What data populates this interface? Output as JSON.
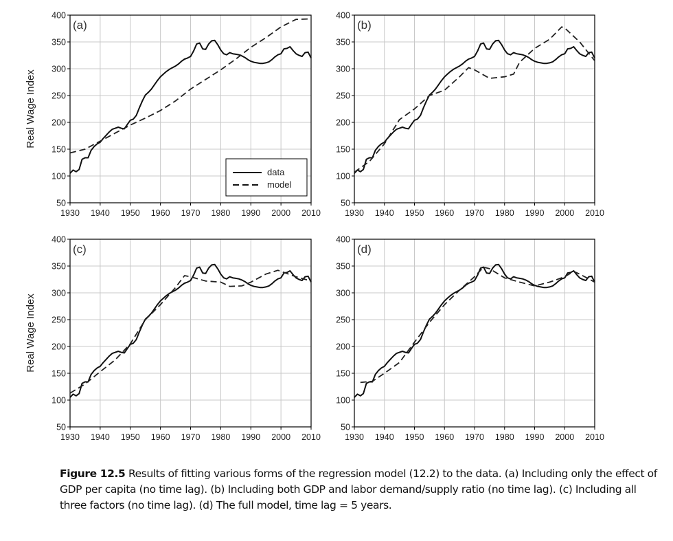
{
  "chart_data": [
    {
      "panel_label": "(a)",
      "type": "line",
      "ylabel": "Real Wage Index",
      "xlim": [
        1930,
        2010
      ],
      "ylim": [
        50,
        400
      ],
      "xticks": [
        "1930",
        "1940",
        "1950",
        "1960",
        "1970",
        "1980",
        "1990",
        "2000",
        "2010"
      ],
      "yticks": [
        "50",
        "100",
        "150",
        "200",
        "250",
        "300",
        "350",
        "400"
      ],
      "grid": true,
      "legend": {
        "placement": "bottom-right",
        "entries": [
          "data",
          "model"
        ]
      },
      "model": {
        "x": [
          1930,
          1935,
          1940,
          1945,
          1950,
          1955,
          1960,
          1965,
          1970,
          1975,
          1980,
          1985,
          1990,
          1995,
          2000,
          2005,
          2010
        ],
        "y": [
          143,
          150,
          165,
          180,
          195,
          208,
          222,
          240,
          262,
          280,
          298,
          318,
          340,
          358,
          378,
          392,
          393
        ]
      }
    },
    {
      "panel_label": "(b)",
      "type": "line",
      "ylabel": "",
      "xlim": [
        1930,
        2010
      ],
      "ylim": [
        50,
        400
      ],
      "xticks": [
        "1930",
        "1940",
        "1950",
        "1960",
        "1970",
        "1980",
        "1990",
        "2000",
        "2010"
      ],
      "yticks": [
        "50",
        "100",
        "150",
        "200",
        "250",
        "300",
        "350",
        "400"
      ],
      "grid": true,
      "model": {
        "x": [
          1930,
          1935,
          1940,
          1945,
          1950,
          1955,
          1960,
          1965,
          1968,
          1970,
          1975,
          1980,
          1983,
          1985,
          1990,
          1995,
          1999,
          2000,
          2005,
          2010
        ],
        "y": [
          107,
          127,
          160,
          205,
          225,
          250,
          260,
          285,
          302,
          298,
          282,
          285,
          290,
          312,
          338,
          355,
          378,
          376,
          350,
          315
        ]
      }
    },
    {
      "panel_label": "(c)",
      "type": "line",
      "ylabel": "Real Wage Index",
      "xlim": [
        1930,
        2010
      ],
      "ylim": [
        50,
        400
      ],
      "xticks": [
        "1930",
        "1940",
        "1950",
        "1960",
        "1970",
        "1980",
        "1990",
        "2000",
        "2010"
      ],
      "yticks": [
        "50",
        "100",
        "150",
        "200",
        "250",
        "300",
        "350",
        "400"
      ],
      "grid": true,
      "model": {
        "x": [
          1930,
          1935,
          1940,
          1945,
          1950,
          1955,
          1960,
          1965,
          1968,
          1970,
          1975,
          1980,
          1983,
          1987,
          1990,
          1995,
          1999,
          2002,
          2005,
          2010
        ],
        "y": [
          113,
          130,
          153,
          175,
          205,
          250,
          278,
          310,
          332,
          330,
          322,
          320,
          312,
          313,
          320,
          335,
          342,
          336,
          330,
          322
        ]
      }
    },
    {
      "panel_label": "(d)",
      "type": "line",
      "ylabel": "",
      "xlim": [
        1930,
        2010
      ],
      "ylim": [
        50,
        400
      ],
      "xticks": [
        "1930",
        "1940",
        "1950",
        "1960",
        "1970",
        "1980",
        "1990",
        "2000",
        "2010"
      ],
      "yticks": [
        "50",
        "100",
        "150",
        "200",
        "250",
        "300",
        "350",
        "400"
      ],
      "grid": true,
      "model": {
        "x": [
          1932,
          1936,
          1940,
          1945,
          1950,
          1955,
          1960,
          1965,
          1970,
          1973,
          1975,
          1980,
          1985,
          1990,
          1995,
          2000,
          2003,
          2005,
          2010
        ],
        "y": [
          133,
          135,
          150,
          170,
          208,
          245,
          278,
          305,
          330,
          348,
          345,
          328,
          320,
          313,
          320,
          330,
          340,
          335,
          320
        ]
      }
    }
  ],
  "data_series": {
    "name": "data",
    "start_year": 1930,
    "values": [
      105,
      111,
      108,
      112,
      131,
      134,
      134,
      148,
      155,
      160,
      163,
      170,
      176,
      182,
      187,
      189,
      191,
      189,
      188,
      196,
      204,
      206,
      213,
      227,
      240,
      251,
      256,
      262,
      270,
      278,
      285,
      290,
      295,
      299,
      302,
      305,
      309,
      314,
      318,
      320,
      323,
      333,
      346,
      348,
      337,
      336,
      346,
      352,
      353,
      345,
      335,
      328,
      326,
      330,
      328,
      327,
      326,
      324,
      321,
      317,
      314,
      312,
      311,
      310,
      310,
      311,
      313,
      317,
      322,
      326,
      328,
      337,
      338,
      341,
      334,
      328,
      325,
      323,
      330,
      331,
      320
    ]
  },
  "caption": {
    "label": "Figure 12.5",
    "text": " Results of fitting various forms of the regression model (12.2) to the data. (a) Including only the effect of GDP per capita (no time lag). (b) Including both GDP and labor demand/supply ratio (no time lag). (c) Including all three factors (no time lag). (d) The full model, time lag = 5 years."
  }
}
